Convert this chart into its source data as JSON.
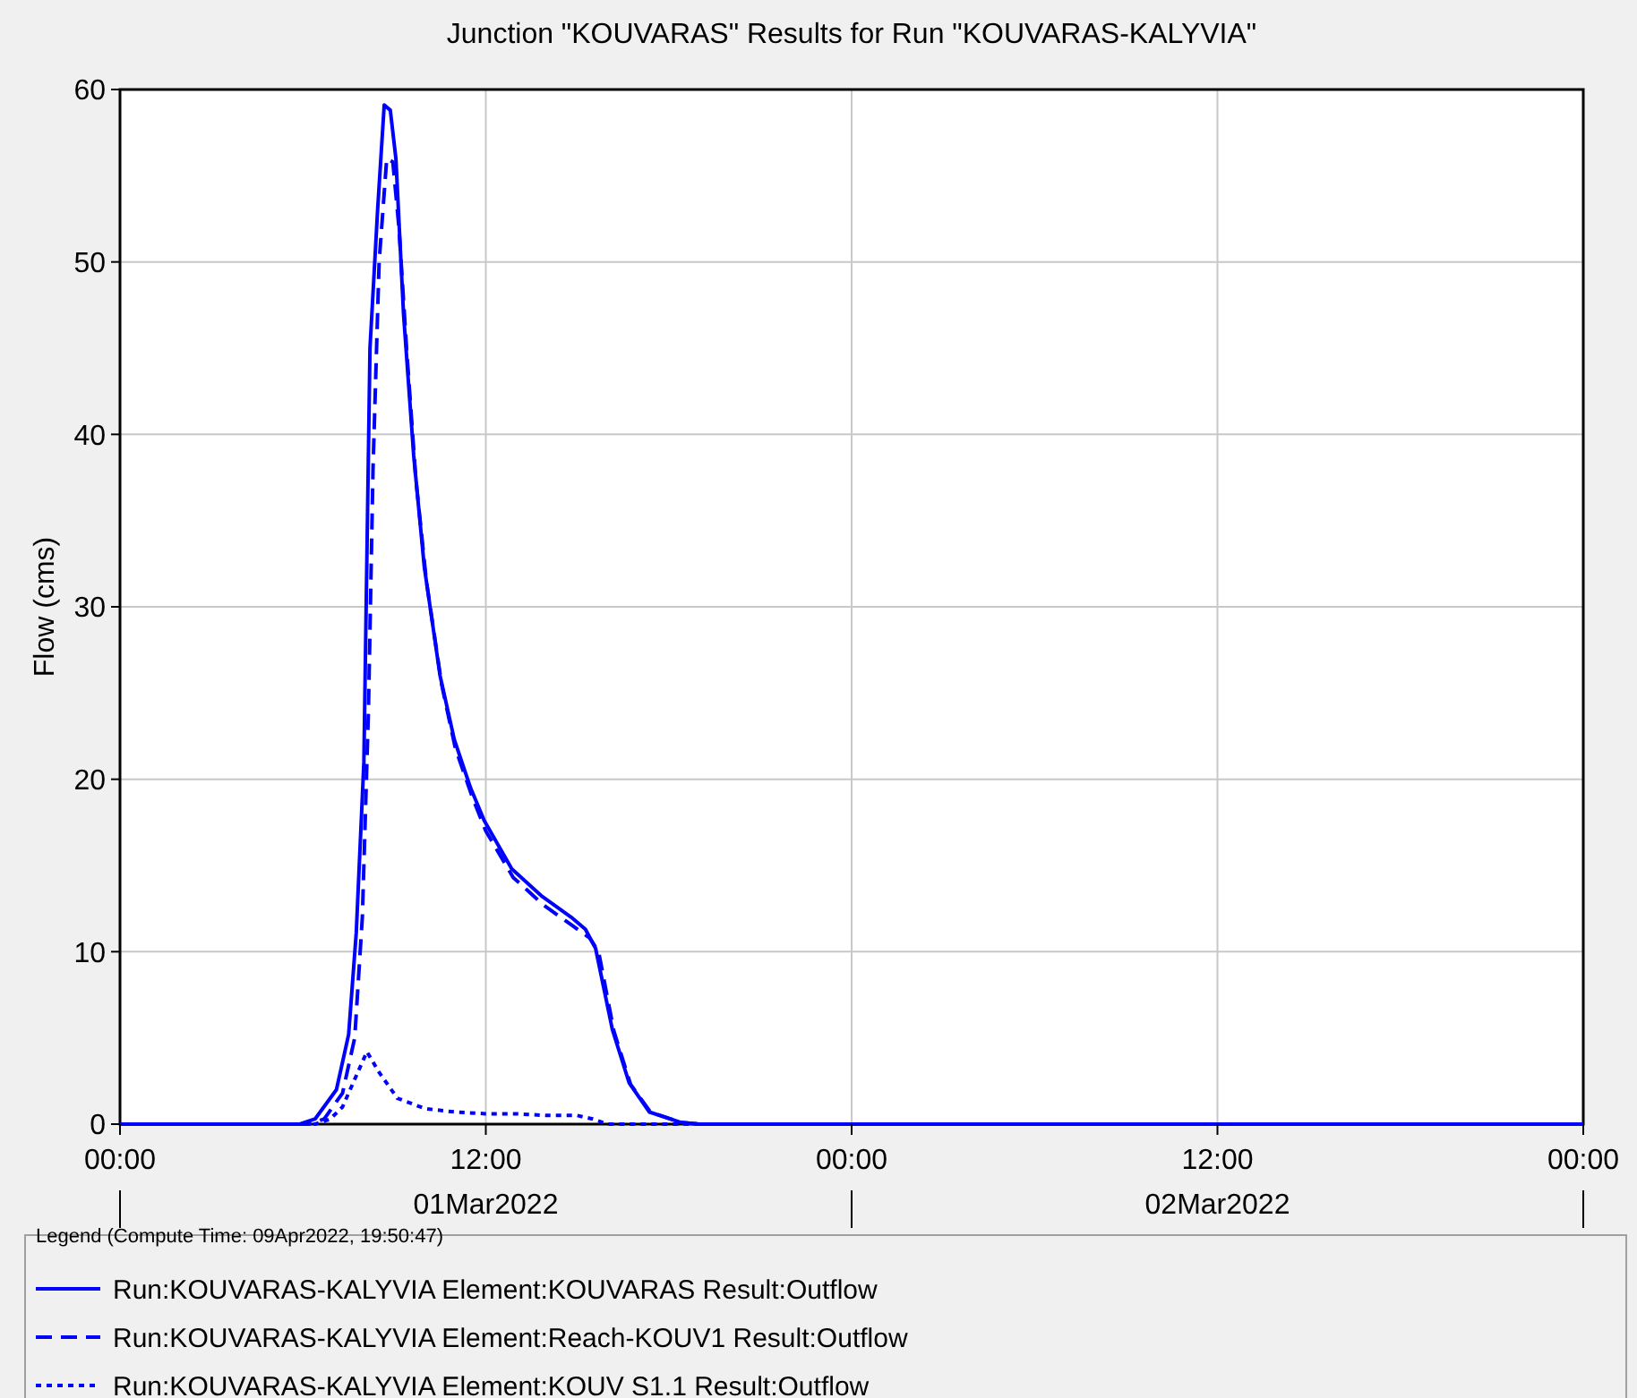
{
  "chart_data": {
    "type": "line",
    "title": "Junction \"KOUVARAS\" Results for Run \"KOUVARAS-KALYVIA\"",
    "ylabel": "Flow (cms)",
    "legend_title": "Legend (Compute Time: 09Apr2022, 19:50:47)",
    "legend": "bottom",
    "grid": true,
    "marker": "none",
    "xlim": [
      "2022-03-01T00:00",
      "2022-03-03T00:00"
    ],
    "ylim": [
      0,
      60
    ],
    "xticks": [
      {
        "value": "2022-03-01T00:00",
        "label": "00:00"
      },
      {
        "value": "2022-03-01T12:00",
        "label": "12:00\n01Mar2022"
      },
      {
        "value": "2022-03-02T00:00",
        "label": "00:00"
      },
      {
        "value": "2022-03-02T12:00",
        "label": "12:00\n02Mar2022"
      },
      {
        "value": "2022-03-03T00:00",
        "label": "00:00"
      }
    ],
    "yticks": [
      0,
      10,
      20,
      30,
      40,
      50,
      60
    ],
    "series": [
      {
        "name": "Run:KOUVARAS-KALYVIA Element:KOUVARAS Result:Outflow",
        "color": "#0000ff",
        "line_style": "solid",
        "x": [
          "2022-03-01T00:00",
          "2022-03-01T05:54",
          "2022-03-01T06:24",
          "2022-03-01T07:06",
          "2022-03-01T07:30",
          "2022-03-01T07:45",
          "2022-03-01T08:00",
          "2022-03-01T08:06",
          "2022-03-01T08:12",
          "2022-03-01T08:27",
          "2022-03-01T08:40",
          "2022-03-01T08:52",
          "2022-03-01T09:03",
          "2022-03-01T09:18",
          "2022-03-01T09:38",
          "2022-03-01T09:59",
          "2022-03-01T10:30",
          "2022-03-01T10:58",
          "2022-03-01T11:30",
          "2022-03-01T11:57",
          "2022-03-01T12:51",
          "2022-03-01T13:51",
          "2022-03-01T14:48",
          "2022-03-01T15:16",
          "2022-03-01T15:36",
          "2022-03-01T16:09",
          "2022-03-01T16:42",
          "2022-03-01T17:22",
          "2022-03-01T18:24",
          "2022-03-01T19:00",
          "2022-03-03T00:00"
        ],
        "values": [
          0,
          0,
          0.3,
          2.0,
          5.2,
          11.1,
          21,
          33,
          45,
          53,
          59.1,
          58.8,
          56,
          47,
          38.8,
          32.3,
          26,
          22.3,
          19.5,
          17.6,
          14.8,
          13.2,
          12.0,
          11.3,
          10.2,
          5.5,
          2.4,
          0.7,
          0.1,
          0,
          0
        ]
      },
      {
        "name": "Run:KOUVARAS-KALYVIA Element:Reach-KOUV1 Result:Outflow",
        "color": "#0000ff",
        "line_style": "dashed",
        "x": [
          "2022-03-01T00:00",
          "2022-03-01T06:12",
          "2022-03-01T06:42",
          "2022-03-01T07:18",
          "2022-03-01T07:42",
          "2022-03-01T07:57",
          "2022-03-01T08:09",
          "2022-03-01T08:18",
          "2022-03-01T08:30",
          "2022-03-01T08:45",
          "2022-03-01T08:57",
          "2022-03-01T09:09",
          "2022-03-01T09:24",
          "2022-03-01T09:42",
          "2022-03-01T10:03",
          "2022-03-01T10:33",
          "2022-03-01T11:00",
          "2022-03-01T11:33",
          "2022-03-01T12:00",
          "2022-03-01T12:54",
          "2022-03-01T13:54",
          "2022-03-01T14:51",
          "2022-03-01T15:24",
          "2022-03-01T15:42",
          "2022-03-01T16:12",
          "2022-03-01T16:45",
          "2022-03-01T17:24",
          "2022-03-01T18:24",
          "2022-03-01T19:00",
          "2022-03-03T00:00"
        ],
        "values": [
          0,
          0,
          0.3,
          1.8,
          5.0,
          12,
          24,
          38,
          50,
          56,
          55.8,
          52,
          45,
          37.5,
          31.5,
          25.5,
          21.8,
          19,
          17,
          14.3,
          12.7,
          11.5,
          10.8,
          10.0,
          5.4,
          2.3,
          0.7,
          0.1,
          0,
          0
        ]
      },
      {
        "name": "Run:KOUVARAS-KALYVIA Element:KOUV  S1.1 Result:Outflow",
        "color": "#0000ff",
        "line_style": "dotted",
        "x": [
          "2022-03-01T00:00",
          "2022-03-01T06:24",
          "2022-03-01T06:54",
          "2022-03-01T07:18",
          "2022-03-01T07:48",
          "2022-03-01T08:06",
          "2022-03-01T08:30",
          "2022-03-01T09:06",
          "2022-03-01T10:00",
          "2022-03-01T11:00",
          "2022-03-01T12:00",
          "2022-03-01T13:00",
          "2022-03-01T14:00",
          "2022-03-01T15:00",
          "2022-03-01T15:30",
          "2022-03-01T16:00",
          "2022-03-03T00:00"
        ],
        "values": [
          0,
          0,
          0.3,
          1.0,
          3.0,
          4.2,
          3.0,
          1.5,
          0.9,
          0.7,
          0.6,
          0.6,
          0.5,
          0.5,
          0.3,
          0,
          0
        ]
      }
    ]
  }
}
